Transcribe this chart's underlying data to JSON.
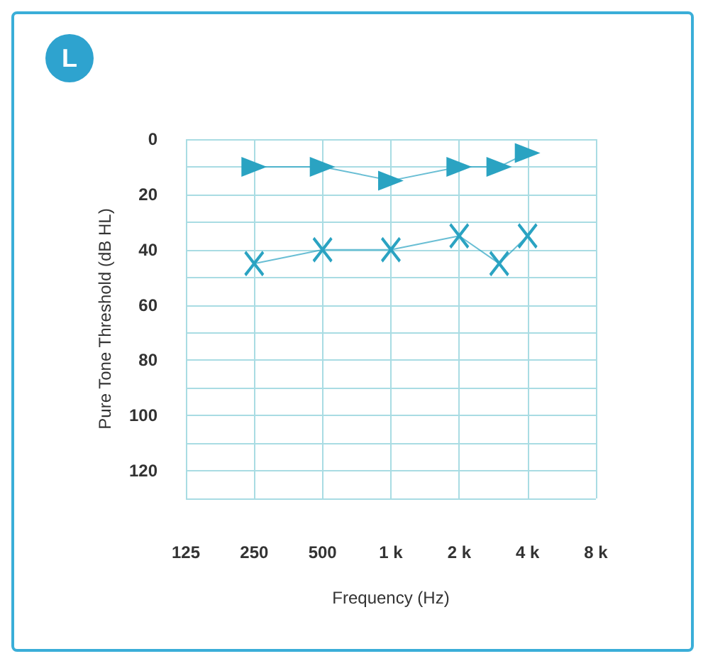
{
  "chart_data": {
    "type": "line",
    "title": "L",
    "xlabel": "Frequency (Hz)",
    "ylabel": "Pure Tone Threshold (dB HL)",
    "log": "x",
    "xlim": [
      125,
      8000
    ],
    "xticks": [
      125,
      250,
      500,
      {
        "value": 1000,
        "label": "1 k"
      },
      {
        "value": 2000,
        "label": "2 k"
      },
      {
        "value": 4000,
        "label": "4 k"
      },
      {
        "value": 8000,
        "label": "8 k"
      }
    ],
    "ylim": [
      130,
      0
    ],
    "yticks": [
      0,
      {
        "value": 10,
        "label": null
      },
      20,
      {
        "value": 30,
        "label": null
      },
      40,
      {
        "value": 50,
        "label": null
      },
      60,
      {
        "value": 70,
        "label": null
      },
      80,
      {
        "value": 90,
        "label": null
      },
      100,
      {
        "value": 110,
        "label": null
      },
      120,
      {
        "value": 130,
        "label": null
      }
    ],
    "grid": true,
    "series": [
      {
        "color": "#2aa3c2",
        "marker": "triangle",
        "x": [
          250,
          500,
          1000,
          2000,
          3000,
          4000
        ],
        "values": [
          10,
          10,
          15,
          10,
          10,
          5
        ]
      },
      {
        "color": "#2aa3c2",
        "marker": "cross",
        "x": [
          250,
          500,
          1000,
          2000,
          3000,
          4000
        ],
        "values": [
          45,
          40,
          40,
          35,
          45,
          35
        ]
      }
    ]
  }
}
